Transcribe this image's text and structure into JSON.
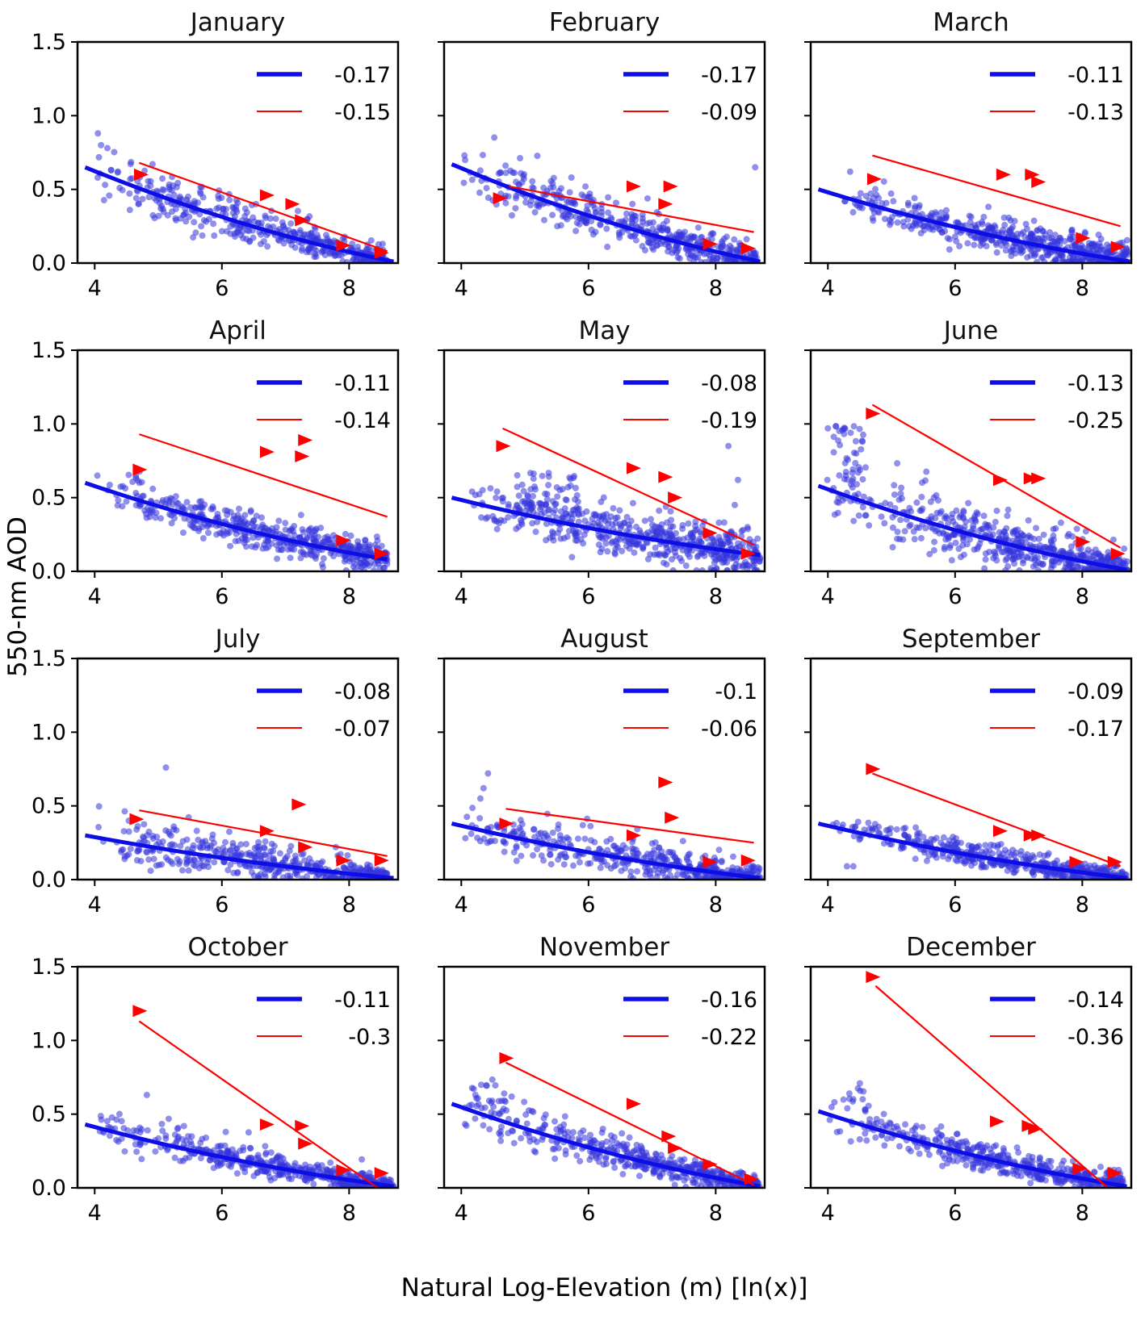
{
  "figure": {
    "ylabel": "550-nm AOD",
    "xlabel": "Natural Log-Elevation (m) [ln(x)]",
    "colors": {
      "scatter_blue": "#3434dd",
      "line_blue": "#0d0de8",
      "red": "#ff0000",
      "axis": "#000000",
      "title_text": "#111111"
    }
  },
  "chart_data": {
    "type": "scatter",
    "layout": "4 rows x 3 columns, one panel per month",
    "xlabel": "Natural Log-Elevation (m) [ln(x)]",
    "ylabel": "550-nm AOD",
    "xlim": [
      3.73,
      8.77
    ],
    "ylim": [
      0,
      1.5
    ],
    "x_ticks": [
      4,
      6,
      8
    ],
    "y_ticks": [
      "0.0",
      "0.5",
      "1.0",
      "1.5"
    ],
    "legend_note": "Each panel legend: thick blue line = fit slope of blue scatter cloud; thin red line = fit slope of red triangle markers",
    "panels": [
      {
        "month": "January",
        "blue_slope": "-0.17",
        "red_slope": "-0.15",
        "blue_line": {
          "x": [
            3.85,
            8.7
          ],
          "y": [
            0.65,
            0.01
          ]
        },
        "red_line": {
          "x": [
            4.7,
            8.6
          ],
          "y": [
            0.68,
            0.08
          ]
        },
        "triangles": [
          [
            4.72,
            0.6
          ],
          [
            6.7,
            0.46
          ],
          [
            7.1,
            0.4
          ],
          [
            7.25,
            0.29
          ],
          [
            7.9,
            0.12
          ],
          [
            8.5,
            0.07
          ]
        ],
        "scatter": {
          "seed": 11,
          "n": 430,
          "x_range": [
            4.02,
            8.65
          ],
          "skew": 0.7,
          "noise": {
            "sd": [
              0.095,
              0.03
            ],
            "tail_p": 0.13,
            "tail": [
              0.22,
              0.08
            ]
          },
          "clusters": [],
          "outliers": [
            [
              4.05,
              0.88
            ],
            [
              4.1,
              0.8
            ],
            [
              4.2,
              0.78
            ]
          ]
        }
      },
      {
        "month": "February",
        "blue_slope": "-0.17",
        "red_slope": "-0.09",
        "blue_line": {
          "x": [
            3.85,
            8.7
          ],
          "y": [
            0.67,
            0.01
          ]
        },
        "red_line": {
          "x": [
            4.75,
            8.6
          ],
          "y": [
            0.52,
            0.21
          ]
        },
        "triangles": [
          [
            4.6,
            0.44
          ],
          [
            6.7,
            0.52
          ],
          [
            7.28,
            0.52
          ],
          [
            7.2,
            0.4
          ],
          [
            7.9,
            0.13
          ],
          [
            8.5,
            0.1
          ]
        ],
        "scatter": {
          "seed": 22,
          "n": 450,
          "x_range": [
            4.0,
            8.65
          ],
          "skew": 0.65,
          "noise": {
            "sd": [
              0.08,
              0.035
            ],
            "tail_p": 0.14,
            "tail": [
              0.22,
              0.1
            ]
          },
          "clusters": [],
          "outliers": [
            [
              8.62,
              0.65
            ],
            [
              4.05,
              0.73
            ]
          ]
        }
      },
      {
        "month": "March",
        "blue_slope": "-0.11",
        "red_slope": "-0.13",
        "blue_line": {
          "x": [
            3.85,
            8.75
          ],
          "y": [
            0.5,
            0.01
          ]
        },
        "red_line": {
          "x": [
            4.7,
            8.6
          ],
          "y": [
            0.73,
            0.25
          ]
        },
        "triangles": [
          [
            4.72,
            0.57
          ],
          [
            6.75,
            0.6
          ],
          [
            7.2,
            0.6
          ],
          [
            7.3,
            0.55
          ],
          [
            8.0,
            0.17
          ],
          [
            8.55,
            0.11
          ]
        ],
        "scatter": {
          "seed": 33,
          "n": 540,
          "x_range": [
            4.0,
            8.72
          ],
          "skew": 0.55,
          "noise": {
            "sd": [
              0.05,
              0.055
            ],
            "tail_p": 0.12,
            "tail": [
              0.12,
              0.12
            ]
          },
          "clusters": [],
          "outliers": [
            [
              4.35,
              0.62
            ]
          ]
        }
      },
      {
        "month": "April",
        "blue_slope": "-0.11",
        "red_slope": "-0.14",
        "blue_line": {
          "x": [
            3.85,
            8.6
          ],
          "y": [
            0.6,
            0.08
          ]
        },
        "red_line": {
          "x": [
            4.7,
            8.6
          ],
          "y": [
            0.93,
            0.37
          ]
        },
        "triangles": [
          [
            4.7,
            0.69
          ],
          [
            6.7,
            0.81
          ],
          [
            7.3,
            0.89
          ],
          [
            7.25,
            0.78
          ],
          [
            7.9,
            0.21
          ],
          [
            8.5,
            0.12
          ]
        ],
        "scatter": {
          "seed": 44,
          "n": 500,
          "x_range": [
            4.0,
            8.6
          ],
          "skew": 0.62,
          "noise": {
            "sd": [
              0.06,
              0.05
            ],
            "tail_p": 0.1,
            "tail": [
              0.12,
              0.1
            ]
          },
          "clusters": [
            {
              "x": [
                4.55,
                4.75
              ],
              "y": [
                0.6,
                0.69
              ],
              "n": 6
            }
          ],
          "outliers": []
        }
      },
      {
        "month": "May",
        "blue_slope": "-0.08",
        "red_slope": "-0.19",
        "blue_line": {
          "x": [
            3.85,
            8.7
          ],
          "y": [
            0.5,
            0.11
          ]
        },
        "red_line": {
          "x": [
            4.65,
            8.6
          ],
          "y": [
            0.97,
            0.18
          ]
        },
        "triangles": [
          [
            4.65,
            0.85
          ],
          [
            6.7,
            0.7
          ],
          [
            7.2,
            0.64
          ],
          [
            7.35,
            0.5
          ],
          [
            7.9,
            0.26
          ],
          [
            8.5,
            0.12
          ]
        ],
        "scatter": {
          "seed": 55,
          "n": 520,
          "x_range": [
            3.95,
            8.7
          ],
          "skew": 0.62,
          "noise": {
            "sd": [
              0.085,
              0.07
            ],
            "tail_p": 0.12,
            "tail": [
              0.15,
              0.12
            ]
          },
          "clusters": [
            {
              "x": [
                4.85,
                5.9
              ],
              "y": [
                0.38,
                0.67
              ],
              "n": 55
            }
          ],
          "outliers": [
            [
              8.2,
              0.85
            ],
            [
              8.35,
              0.62
            ],
            [
              8.3,
              0.45
            ],
            [
              8.05,
              0.33
            ],
            [
              8.5,
              0.3
            ]
          ]
        }
      },
      {
        "month": "June",
        "blue_slope": "-0.13",
        "red_slope": "-0.25",
        "blue_line": {
          "x": [
            3.85,
            8.7
          ],
          "y": [
            0.58,
            0.01
          ]
        },
        "red_line": {
          "x": [
            4.7,
            8.6
          ],
          "y": [
            1.13,
            0.16
          ]
        },
        "triangles": [
          [
            4.7,
            1.07
          ],
          [
            6.7,
            0.62
          ],
          [
            7.18,
            0.63
          ],
          [
            7.3,
            0.63
          ],
          [
            8.0,
            0.2
          ],
          [
            8.55,
            0.12
          ]
        ],
        "scatter": {
          "seed": 66,
          "n": 540,
          "x_range": [
            3.95,
            8.72
          ],
          "skew": 0.6,
          "noise": {
            "sd": [
              0.11,
              0.045
            ],
            "tail_p": 0.14,
            "tail": [
              0.3,
              0.1
            ]
          },
          "clusters": [
            {
              "x": [
                4.05,
                4.6
              ],
              "y": [
                0.45,
                1.02
              ],
              "n": 45
            }
          ],
          "outliers": [
            [
              4.0,
              0.97
            ]
          ]
        }
      },
      {
        "month": "July",
        "blue_slope": "-0.08",
        "red_slope": "-0.07",
        "blue_line": {
          "x": [
            3.85,
            8.7
          ],
          "y": [
            0.3,
            0.01
          ]
        },
        "red_line": {
          "x": [
            4.7,
            8.6
          ],
          "y": [
            0.47,
            0.16
          ]
        },
        "triangles": [
          [
            4.65,
            0.41
          ],
          [
            6.7,
            0.33
          ],
          [
            7.2,
            0.51
          ],
          [
            7.3,
            0.22
          ],
          [
            7.9,
            0.13
          ],
          [
            8.5,
            0.13
          ]
        ],
        "scatter": {
          "seed": 77,
          "n": 440,
          "x_range": [
            4.0,
            8.6
          ],
          "skew": 0.62,
          "noise": {
            "sd": [
              0.085,
              0.025
            ],
            "tail_p": 0.16,
            "tail": [
              0.2,
              0.06
            ]
          },
          "clusters": [],
          "outliers": [
            [
              5.12,
              0.76
            ]
          ]
        }
      },
      {
        "month": "August",
        "blue_slope": "-0.1",
        "red_slope": "-0.06",
        "blue_line": {
          "x": [
            3.85,
            8.7
          ],
          "y": [
            0.38,
            0.01
          ]
        },
        "red_line": {
          "x": [
            4.7,
            8.6
          ],
          "y": [
            0.48,
            0.25
          ]
        },
        "triangles": [
          [
            4.7,
            0.38
          ],
          [
            6.7,
            0.3
          ],
          [
            7.2,
            0.66
          ],
          [
            7.3,
            0.42
          ],
          [
            7.9,
            0.12
          ],
          [
            8.5,
            0.13
          ]
        ],
        "scatter": {
          "seed": 88,
          "n": 460,
          "x_range": [
            4.0,
            8.72
          ],
          "skew": 0.62,
          "noise": {
            "sd": [
              0.075,
              0.035
            ],
            "tail_p": 0.14,
            "tail": [
              0.18,
              0.08
            ]
          },
          "clusters": [],
          "outliers": [
            [
              4.42,
              0.72
            ],
            [
              4.35,
              0.62
            ],
            [
              4.3,
              0.55
            ]
          ]
        }
      },
      {
        "month": "September",
        "blue_slope": "-0.09",
        "red_slope": "-0.17",
        "blue_line": {
          "x": [
            3.85,
            8.7
          ],
          "y": [
            0.38,
            0.01
          ]
        },
        "red_line": {
          "x": [
            4.7,
            8.6
          ],
          "y": [
            0.72,
            0.09
          ]
        },
        "triangles": [
          [
            4.7,
            0.75
          ],
          [
            6.7,
            0.33
          ],
          [
            7.18,
            0.3
          ],
          [
            7.3,
            0.3
          ],
          [
            7.9,
            0.12
          ],
          [
            8.5,
            0.12
          ]
        ],
        "scatter": {
          "seed": 99,
          "n": 480,
          "x_range": [
            4.0,
            8.7
          ],
          "skew": 0.62,
          "noise": {
            "sd": [
              0.05,
              0.028
            ],
            "tail_p": 0.12,
            "tail": [
              0.1,
              0.06
            ]
          },
          "clusters": [],
          "outliers": [
            [
              4.3,
              0.09
            ],
            [
              4.4,
              0.09
            ]
          ]
        }
      },
      {
        "month": "October",
        "blue_slope": "-0.11",
        "red_slope": "-0.3",
        "blue_line": {
          "x": [
            3.85,
            8.7
          ],
          "y": [
            0.43,
            0.01
          ]
        },
        "red_line": {
          "x": [
            4.7,
            8.45
          ],
          "y": [
            1.13,
            0.0
          ]
        },
        "triangles": [
          [
            4.7,
            1.2
          ],
          [
            6.7,
            0.43
          ],
          [
            7.25,
            0.42
          ],
          [
            7.3,
            0.3
          ],
          [
            7.9,
            0.12
          ],
          [
            8.5,
            0.1
          ]
        ],
        "scatter": {
          "seed": 110,
          "n": 470,
          "x_range": [
            4.0,
            8.7
          ],
          "skew": 0.62,
          "noise": {
            "sd": [
              0.06,
              0.025
            ],
            "tail_p": 0.13,
            "tail": [
              0.12,
              0.06
            ]
          },
          "clusters": [],
          "outliers": [
            [
              4.82,
              0.63
            ]
          ]
        }
      },
      {
        "month": "November",
        "blue_slope": "-0.16",
        "red_slope": "-0.22",
        "blue_line": {
          "x": [
            3.85,
            8.7
          ],
          "y": [
            0.57,
            0.01
          ]
        },
        "red_line": {
          "x": [
            4.7,
            8.6
          ],
          "y": [
            0.85,
            0.02
          ]
        },
        "triangles": [
          [
            4.7,
            0.88
          ],
          [
            6.7,
            0.57
          ],
          [
            7.25,
            0.35
          ],
          [
            7.35,
            0.27
          ],
          [
            7.9,
            0.16
          ],
          [
            8.55,
            0.06
          ]
        ],
        "scatter": {
          "seed": 121,
          "n": 480,
          "x_range": [
            4.0,
            8.7
          ],
          "skew": 0.62,
          "noise": {
            "sd": [
              0.08,
              0.028
            ],
            "tail_p": 0.13,
            "tail": [
              0.18,
              0.07
            ]
          },
          "clusters": [
            {
              "x": [
                4.05,
                4.7
              ],
              "y": [
                0.5,
                0.7
              ],
              "n": 20
            }
          ],
          "outliers": []
        }
      },
      {
        "month": "December",
        "blue_slope": "-0.14",
        "red_slope": "-0.36",
        "blue_line": {
          "x": [
            3.85,
            8.7
          ],
          "y": [
            0.52,
            0.01
          ]
        },
        "red_line": {
          "x": [
            4.75,
            8.4
          ],
          "y": [
            1.37,
            0.0
          ]
        },
        "triangles": [
          [
            4.7,
            1.43
          ],
          [
            6.65,
            0.45
          ],
          [
            7.15,
            0.42
          ],
          [
            7.25,
            0.4
          ],
          [
            7.95,
            0.13
          ],
          [
            8.5,
            0.1
          ]
        ],
        "scatter": {
          "seed": 132,
          "n": 470,
          "x_range": [
            4.0,
            8.65
          ],
          "skew": 0.62,
          "noise": {
            "sd": [
              0.06,
              0.028
            ],
            "tail_p": 0.13,
            "tail": [
              0.14,
              0.07
            ]
          },
          "clusters": [
            {
              "x": [
                4.2,
                4.6
              ],
              "y": [
                0.5,
                0.72
              ],
              "n": 12
            }
          ],
          "outliers": []
        }
      }
    ]
  }
}
